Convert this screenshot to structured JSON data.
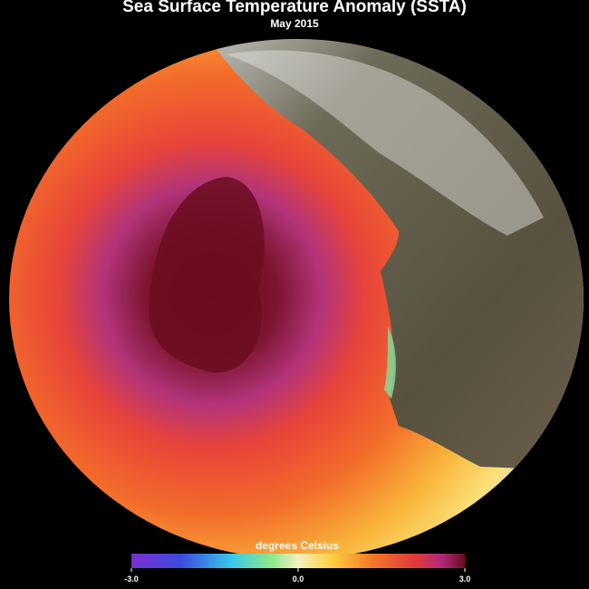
{
  "header": {
    "title": "Sea Surface Temperature Anomaly (SSTA)",
    "subtitle": "May 2015"
  },
  "colorbar": {
    "label": "degrees Celsius",
    "ticks": [
      {
        "value": -3,
        "label": "-3.0"
      },
      {
        "value": 0,
        "label": "0.0"
      },
      {
        "value": 3,
        "label": "3.0"
      }
    ]
  }
}
